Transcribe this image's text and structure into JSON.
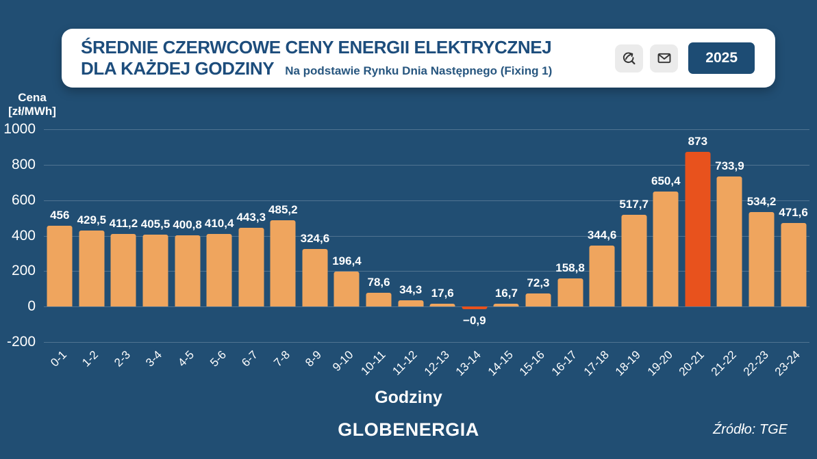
{
  "header": {
    "title_line1": "ŚREDNIE CZERWCOWE CENY ENERGII ELEKTRYCZNEJ",
    "title_line2": "DLA KAŻDEJ GODZINY",
    "subtitle": "Na podstawie Rynku Dnia Następnego (Fixing 1)",
    "year_badge": "2025"
  },
  "chart_data": {
    "type": "bar",
    "title": "Średnie czerwcowe ceny energii elektrycznej dla każdej godziny",
    "xlabel": "Godziny",
    "ylabel": "Cena [zł/MWh]",
    "ylabel_lines": [
      "Cena",
      "[zł/MWh]"
    ],
    "ylim": [
      -200,
      1000
    ],
    "yticks": [
      1000,
      800,
      600,
      400,
      200,
      0,
      -200
    ],
    "grid": true,
    "legend": false,
    "categories": [
      "0-1",
      "1-2",
      "2-3",
      "3-4",
      "4-5",
      "5-6",
      "6-7",
      "7-8",
      "8-9",
      "9-10",
      "10-11",
      "11-12",
      "12-13",
      "13-14",
      "14-15",
      "15-16",
      "16-17",
      "17-18",
      "18-19",
      "19-20",
      "20-21",
      "21-22",
      "22-23",
      "23-24"
    ],
    "values": [
      456,
      429.5,
      411.2,
      405.5,
      400.8,
      410.4,
      443.3,
      485.2,
      324.6,
      196.4,
      78.6,
      34.3,
      17.6,
      -0.9,
      16.7,
      72.3,
      158.8,
      344.6,
      517.7,
      650.4,
      873,
      733.9,
      534.2,
      471.6
    ],
    "value_labels": [
      "456",
      "429,5",
      "411,2",
      "405,5",
      "400,8",
      "410,4",
      "443,3",
      "485,2",
      "324,6",
      "196,4",
      "78,6",
      "34,3",
      "17,6",
      "−0,9",
      "16,7",
      "72,3",
      "158,8",
      "344,6",
      "517,7",
      "650,4",
      "873",
      "733,9",
      "534,2",
      "471,6"
    ],
    "highlight_indices": [
      13,
      20
    ],
    "bar_color": "#EFA55E",
    "highlight_color": "#E8521D"
  },
  "footer": {
    "brand": "GLOBENERGIA",
    "source": "Źródło: TGE"
  },
  "colors": {
    "background": "#214E73",
    "card": "#FFFFFF",
    "title_text": "#1D4D7C",
    "badge": "#1D4C74",
    "gridline": "rgba(255,255,255,0.22)",
    "bar": "#EFA55E",
    "highlight": "#E8521D",
    "icon_button": "#EBEBEB"
  }
}
